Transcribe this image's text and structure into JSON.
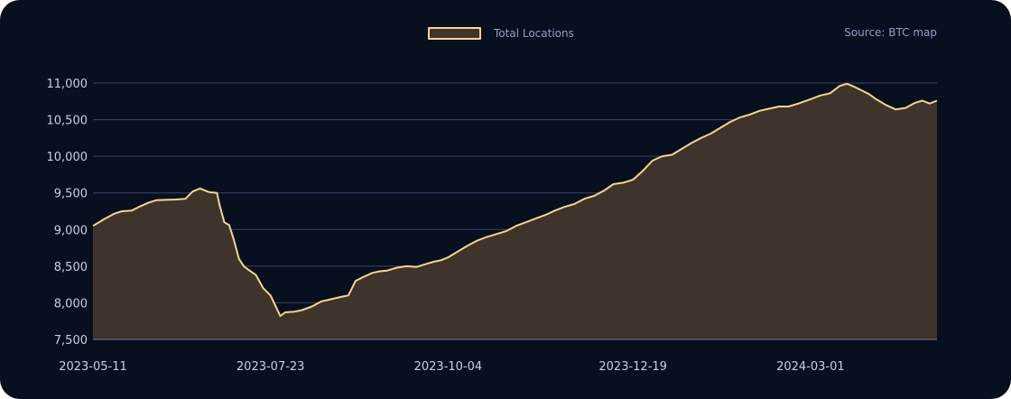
{
  "legend": {
    "label": "Total Locations"
  },
  "source": "Source: BTC map",
  "colors": {
    "background": "#080f1f",
    "line": "#f6d58e",
    "fill": "#3e342b",
    "grid": "#3b4566",
    "text": "#c9d0df"
  },
  "chart_data": {
    "type": "area",
    "title": "",
    "xlabel": "",
    "ylabel": "",
    "ylim": [
      7500,
      11000
    ],
    "yticks": [
      7500,
      8000,
      8500,
      9000,
      9500,
      10000,
      10500,
      11000
    ],
    "ytick_labels": [
      "7,500",
      "8,000",
      "8,500",
      "9,000",
      "9,500",
      "10,000",
      "10,500",
      "11,000"
    ],
    "xlim": [
      "2023-05-11",
      "2024-04-22"
    ],
    "xticks": [
      "2023-05-11",
      "2023-07-23",
      "2023-10-04",
      "2023-12-19",
      "2024-03-01"
    ],
    "grid": true,
    "legend_position": "top-center",
    "series": [
      {
        "name": "Total Locations",
        "x": [
          "2023-05-11",
          "2023-05-16",
          "2023-05-20",
          "2023-05-23",
          "2023-05-27",
          "2023-05-30",
          "2023-06-03",
          "2023-06-06",
          "2023-06-10",
          "2023-06-14",
          "2023-06-18",
          "2023-06-21",
          "2023-06-24",
          "2023-06-27",
          "2023-06-28",
          "2023-07-01",
          "2023-07-02",
          "2023-07-04",
          "2023-07-06",
          "2023-07-08",
          "2023-07-10",
          "2023-07-12",
          "2023-07-14",
          "2023-07-17",
          "2023-07-20",
          "2023-07-23",
          "2023-07-27",
          "2023-07-29",
          "2023-08-02",
          "2023-08-05",
          "2023-08-09",
          "2023-08-13",
          "2023-08-17",
          "2023-08-21",
          "2023-08-24",
          "2023-08-27",
          "2023-08-30",
          "2023-09-03",
          "2023-09-06",
          "2023-09-09",
          "2023-09-13",
          "2023-09-17",
          "2023-09-21",
          "2023-09-25",
          "2023-09-28",
          "2023-10-01",
          "2023-10-04",
          "2023-10-08",
          "2023-10-12",
          "2023-10-16",
          "2023-10-20",
          "2023-10-24",
          "2023-10-28",
          "2023-11-01",
          "2023-11-05",
          "2023-11-09",
          "2023-11-13",
          "2023-11-17",
          "2023-11-21",
          "2023-11-25",
          "2023-11-29",
          "2023-12-03",
          "2023-12-07",
          "2023-12-11",
          "2023-12-15",
          "2023-12-19",
          "2023-12-23",
          "2023-12-27",
          "2023-12-31",
          "2024-01-04",
          "2024-01-08",
          "2024-01-12",
          "2024-01-16",
          "2024-01-20",
          "2024-01-24",
          "2024-01-28",
          "2024-02-01",
          "2024-02-05",
          "2024-02-09",
          "2024-02-13",
          "2024-02-17",
          "2024-02-21",
          "2024-02-25",
          "2024-03-01",
          "2024-03-05",
          "2024-03-09",
          "2024-03-13",
          "2024-03-16",
          "2024-03-19",
          "2024-03-22",
          "2024-03-25",
          "2024-03-28",
          "2024-04-01",
          "2024-04-05",
          "2024-04-09",
          "2024-04-13",
          "2024-04-16",
          "2024-04-19",
          "2024-04-22"
        ],
        "values": [
          9050,
          9150,
          9220,
          9250,
          9260,
          9310,
          9370,
          9400,
          9405,
          9410,
          9420,
          9520,
          9560,
          9520,
          9510,
          9500,
          9340,
          9100,
          9060,
          8850,
          8600,
          8500,
          8450,
          8380,
          8200,
          8100,
          7820,
          7870,
          7880,
          7900,
          7950,
          8020,
          8050,
          8080,
          8100,
          8300,
          8350,
          8410,
          8430,
          8440,
          8480,
          8500,
          8490,
          8530,
          8560,
          8580,
          8620,
          8700,
          8780,
          8850,
          8900,
          8940,
          8980,
          9050,
          9100,
          9150,
          9200,
          9260,
          9310,
          9350,
          9420,
          9460,
          9530,
          9620,
          9640,
          9680,
          9800,
          9940,
          10000,
          10020,
          10100,
          10180,
          10250,
          10310,
          10390,
          10470,
          10530,
          10570,
          10620,
          10650,
          10680,
          10680,
          10720,
          10780,
          10830,
          10860,
          10960,
          10990,
          10950,
          10900,
          10850,
          10780,
          10700,
          10640,
          10660,
          10730,
          10760,
          10720,
          10760
        ]
      }
    ]
  }
}
